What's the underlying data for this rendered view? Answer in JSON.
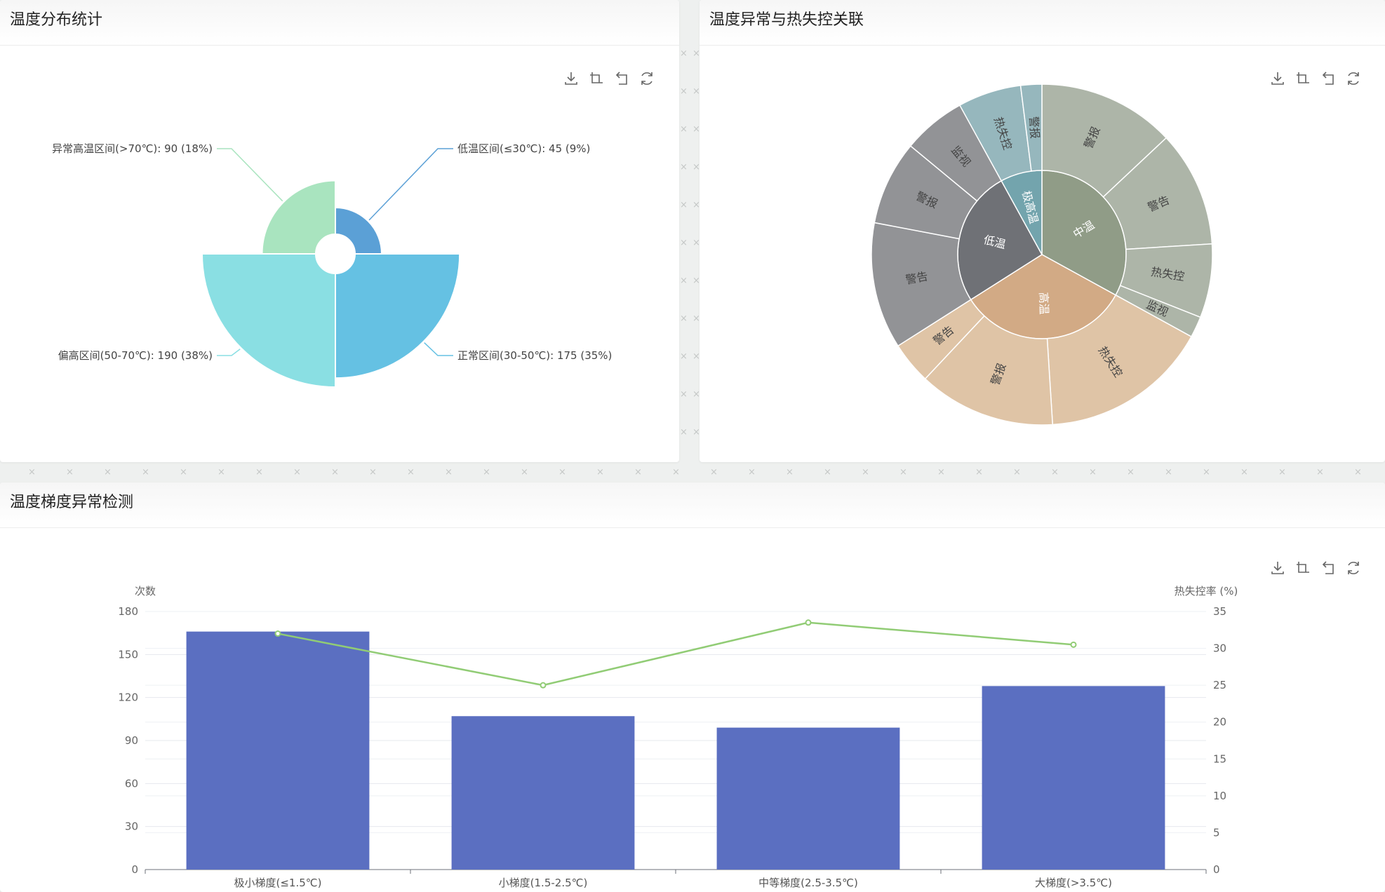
{
  "panels": {
    "temp_distribution": {
      "title": "温度分布统计"
    },
    "anomaly_runaway": {
      "title": "温度异常与热失控关联"
    },
    "gradient": {
      "title": "温度梯度异常检测"
    }
  },
  "toolbox": {
    "icons": [
      "download-icon",
      "data-zoom-icon",
      "zoom-reset-icon",
      "refresh-icon"
    ]
  },
  "chart_data": [
    {
      "type": "pie",
      "variant": "nightingale-rose",
      "title": "",
      "slices": [
        {
          "name": "低温区间(≤30℃)",
          "value": 45,
          "percent": 9,
          "label": "低温区间(≤30℃): 45 (9%)",
          "color": "#5ba0d6"
        },
        {
          "name": "正常区间(30-50℃)",
          "value": 175,
          "percent": 35,
          "label": "正常区间(30-50℃): 175 (35%)",
          "color": "#65c1e3"
        },
        {
          "name": "偏高区间(50-70℃)",
          "value": 190,
          "percent": 38,
          "label": "偏高区间(50-70℃): 190 (38%)",
          "color": "#8adfe3"
        },
        {
          "name": "异常高温区间(>70℃)",
          "value": 90,
          "percent": 18,
          "label": "异常高温区间(>70℃): 90 (18%)",
          "color": "#a9e4bf"
        }
      ]
    },
    {
      "type": "sunburst",
      "title": "",
      "children": [
        {
          "name": "中温",
          "value": 33,
          "color": "#909c87",
          "children": [
            {
              "name": "警报",
              "value": 13,
              "color": "#adb5a8"
            },
            {
              "name": "警告",
              "value": 11,
              "color": "#adb5a8"
            },
            {
              "name": "热失控",
              "value": 7,
              "color": "#adb5a8"
            },
            {
              "name": "监视",
              "value": 2,
              "color": "#adb5a8"
            }
          ]
        },
        {
          "name": "高温",
          "value": 33,
          "color": "#d2aa85",
          "children": [
            {
              "name": "热失控",
              "value": 16,
              "color": "#dfc4a6"
            },
            {
              "name": "警报",
              "value": 13,
              "color": "#dfc4a6"
            },
            {
              "name": "警告",
              "value": 4,
              "color": "#dfc4a6"
            }
          ]
        },
        {
          "name": "低温",
          "value": 26,
          "color": "#6f7176",
          "children": [
            {
              "name": "警告",
              "value": 12,
              "color": "#929396"
            },
            {
              "name": "警报",
              "value": 8,
              "color": "#929396"
            },
            {
              "name": "监视",
              "value": 6,
              "color": "#929396"
            }
          ]
        },
        {
          "name": "极高温",
          "value": 8,
          "color": "#73a4ad",
          "children": [
            {
              "name": "热失控",
              "value": 6,
              "color": "#96b7bd"
            },
            {
              "name": "警报",
              "value": 2,
              "color": "#96b7bd"
            }
          ]
        }
      ]
    },
    {
      "type": "bar",
      "title": "",
      "categories": [
        "极小梯度(≤1.5℃)",
        "小梯度(1.5-2.5℃)",
        "中等梯度(2.5-3.5℃)",
        "大梯度(>3.5℃)"
      ],
      "series": [
        {
          "type": "bar",
          "axis": "left",
          "values": [
            166,
            107,
            99,
            128
          ],
          "color": "#5b6fc1"
        },
        {
          "type": "line",
          "axis": "right",
          "values": [
            32,
            25,
            33.5,
            30.5
          ],
          "color": "#91cc75"
        }
      ],
      "y_left": {
        "label": "次数",
        "min": 0,
        "max": 180,
        "ticks": [
          0,
          30,
          60,
          90,
          120,
          150,
          180
        ]
      },
      "y_right": {
        "label": "热失控率 (%)",
        "min": 0,
        "max": 35,
        "ticks": [
          0,
          5,
          10,
          15,
          20,
          25,
          30,
          35
        ]
      },
      "grid": true
    }
  ]
}
